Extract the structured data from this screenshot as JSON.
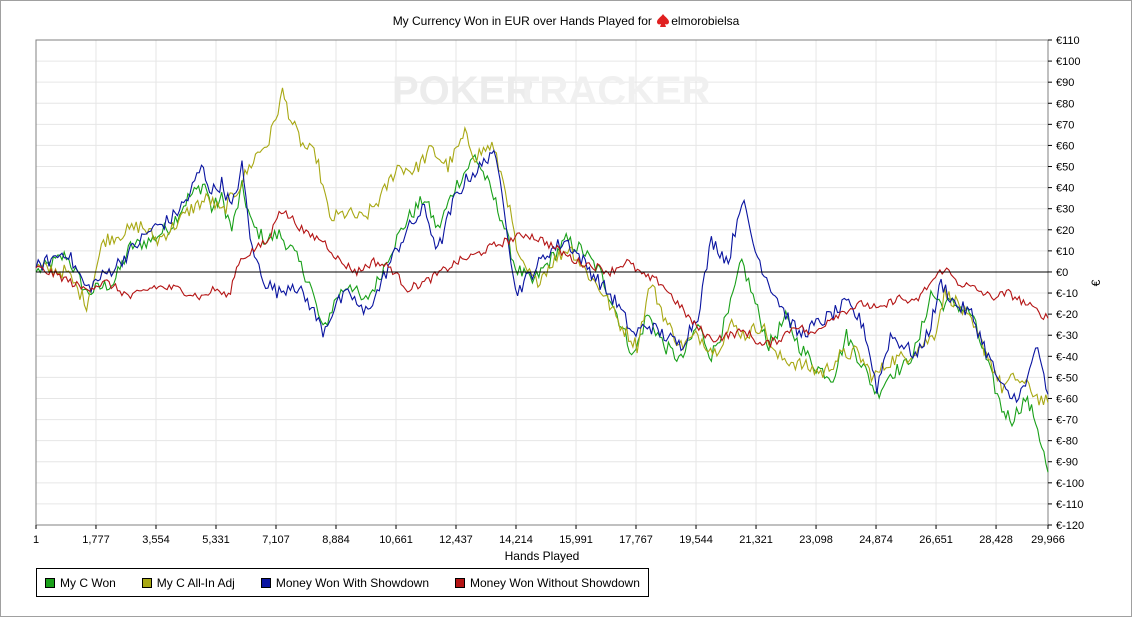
{
  "chart_data": {
    "type": "line",
    "title_prefix": "My Currency Won in EUR over Hands Played for",
    "player_name": "elmorobielsa",
    "xlabel": "Hands Played",
    "ylabel": "€",
    "watermark": {
      "part1": "POKER",
      "part2": "TRACKER"
    },
    "xlim": [
      1,
      29966
    ],
    "ylim": [
      -120,
      110
    ],
    "x_ticks": [
      1,
      1777,
      3554,
      5331,
      7107,
      8884,
      10661,
      12437,
      14214,
      15991,
      17767,
      19544,
      21321,
      23098,
      24874,
      26651,
      28428,
      29966
    ],
    "x_tick_labels": [
      "1",
      "1,777",
      "3,554",
      "5,331",
      "7,107",
      "8,884",
      "10,661",
      "12,437",
      "14,214",
      "15,991",
      "17,767",
      "19,544",
      "21,321",
      "23,098",
      "24,874",
      "26,651",
      "28,428",
      "29,966"
    ],
    "y_ticks": [
      110,
      100,
      90,
      80,
      70,
      60,
      50,
      40,
      30,
      20,
      10,
      0,
      -10,
      -20,
      -30,
      -40,
      -50,
      -60,
      -70,
      -80,
      -90,
      -100,
      -110,
      -120
    ],
    "y_tick_labels": [
      "€110",
      "€100",
      "€90",
      "€80",
      "€70",
      "€60",
      "€50",
      "€40",
      "€30",
      "€20",
      "€10",
      "€0",
      "€-10",
      "€-20",
      "€-30",
      "€-40",
      "€-50",
      "€-60",
      "€-70",
      "€-80",
      "€-90",
      "€-100",
      "€-110",
      "€-120"
    ],
    "grid": true,
    "zero_line": true,
    "legend_position": "bottom-left",
    "series": [
      {
        "name": "My C Won",
        "color": "#19a019",
        "points": [
          [
            1,
            0
          ],
          [
            900,
            8
          ],
          [
            1500,
            -10
          ],
          [
            2300,
            -5
          ],
          [
            2800,
            12
          ],
          [
            3400,
            15
          ],
          [
            4000,
            22
          ],
          [
            4500,
            35
          ],
          [
            5000,
            42
          ],
          [
            5200,
            30
          ],
          [
            5500,
            35
          ],
          [
            5800,
            20
          ],
          [
            6100,
            40
          ],
          [
            6400,
            22
          ],
          [
            6800,
            15
          ],
          [
            7200,
            18
          ],
          [
            7600,
            10
          ],
          [
            8100,
            -5
          ],
          [
            8500,
            -28
          ],
          [
            8900,
            -12
          ],
          [
            9300,
            -5
          ],
          [
            9700,
            -15
          ],
          [
            10100,
            -5
          ],
          [
            10500,
            10
          ],
          [
            11000,
            25
          ],
          [
            11500,
            35
          ],
          [
            11900,
            20
          ],
          [
            12400,
            40
          ],
          [
            13000,
            55
          ],
          [
            13300,
            45
          ],
          [
            13800,
            25
          ],
          [
            14200,
            2
          ],
          [
            14700,
            -5
          ],
          [
            15200,
            5
          ],
          [
            15700,
            15
          ],
          [
            16200,
            10
          ],
          [
            16700,
            0
          ],
          [
            17200,
            -20
          ],
          [
            17700,
            -40
          ],
          [
            18100,
            -20
          ],
          [
            18600,
            -35
          ],
          [
            19100,
            -42
          ],
          [
            19600,
            -25
          ],
          [
            20000,
            -40
          ],
          [
            20500,
            -20
          ],
          [
            20900,
            5
          ],
          [
            21300,
            -15
          ],
          [
            21700,
            -35
          ],
          [
            22200,
            -22
          ],
          [
            22600,
            -35
          ],
          [
            23100,
            -45
          ],
          [
            23600,
            -50
          ],
          [
            24000,
            -30
          ],
          [
            24500,
            -45
          ],
          [
            24900,
            -58
          ],
          [
            25300,
            -48
          ],
          [
            25700,
            -45
          ],
          [
            26100,
            -35
          ],
          [
            26500,
            -10
          ],
          [
            26800,
            -15
          ],
          [
            27200,
            -15
          ],
          [
            27700,
            -20
          ],
          [
            28200,
            -45
          ],
          [
            28600,
            -65
          ],
          [
            28900,
            -70
          ],
          [
            29300,
            -60
          ],
          [
            29600,
            -70
          ],
          [
            29966,
            -95
          ]
        ]
      },
      {
        "name": "My C All-In Adj",
        "color": "#a8a814",
        "points": [
          [
            1,
            2
          ],
          [
            900,
            0
          ],
          [
            1500,
            -15
          ],
          [
            2000,
            15
          ],
          [
            2500,
            18
          ],
          [
            3100,
            22
          ],
          [
            3600,
            15
          ],
          [
            4100,
            22
          ],
          [
            4600,
            30
          ],
          [
            5100,
            35
          ],
          [
            5500,
            28
          ],
          [
            6000,
            40
          ],
          [
            6500,
            55
          ],
          [
            6900,
            62
          ],
          [
            7300,
            85
          ],
          [
            7600,
            70
          ],
          [
            7900,
            60
          ],
          [
            8300,
            55
          ],
          [
            8700,
            25
          ],
          [
            9200,
            28
          ],
          [
            9700,
            25
          ],
          [
            10200,
            35
          ],
          [
            10700,
            50
          ],
          [
            11200,
            48
          ],
          [
            11700,
            58
          ],
          [
            12200,
            50
          ],
          [
            12700,
            65
          ],
          [
            13000,
            55
          ],
          [
            13500,
            60
          ],
          [
            13900,
            40
          ],
          [
            14300,
            5
          ],
          [
            14800,
            -5
          ],
          [
            15300,
            5
          ],
          [
            15800,
            12
          ],
          [
            16300,
            0
          ],
          [
            16800,
            -10
          ],
          [
            17300,
            -25
          ],
          [
            17800,
            -35
          ],
          [
            18200,
            -5
          ],
          [
            18700,
            -25
          ],
          [
            19100,
            -35
          ],
          [
            19600,
            -30
          ],
          [
            20100,
            -38
          ],
          [
            20600,
            -25
          ],
          [
            21000,
            -30
          ],
          [
            21500,
            -25
          ],
          [
            21900,
            -40
          ],
          [
            22300,
            -42
          ],
          [
            22800,
            -45
          ],
          [
            23300,
            -48
          ],
          [
            23800,
            -40
          ],
          [
            24300,
            -38
          ],
          [
            24800,
            -50
          ],
          [
            25300,
            -42
          ],
          [
            25800,
            -40
          ],
          [
            26200,
            -35
          ],
          [
            26600,
            -30
          ],
          [
            26900,
            -10
          ],
          [
            27300,
            -15
          ],
          [
            27700,
            -25
          ],
          [
            28200,
            -40
          ],
          [
            28600,
            -55
          ],
          [
            29000,
            -50
          ],
          [
            29400,
            -55
          ],
          [
            29700,
            -60
          ],
          [
            29966,
            -62
          ]
        ]
      },
      {
        "name": "Money Won With Showdown",
        "color": "#0a14a0",
        "points": [
          [
            1,
            2
          ],
          [
            900,
            10
          ],
          [
            1500,
            -8
          ],
          [
            2300,
            2
          ],
          [
            2800,
            10
          ],
          [
            3400,
            20
          ],
          [
            4000,
            25
          ],
          [
            4500,
            35
          ],
          [
            4900,
            50
          ],
          [
            5200,
            38
          ],
          [
            5500,
            42
          ],
          [
            5800,
            30
          ],
          [
            6100,
            50
          ],
          [
            6400,
            10
          ],
          [
            6800,
            -5
          ],
          [
            7200,
            -10
          ],
          [
            7600,
            -5
          ],
          [
            8100,
            -15
          ],
          [
            8500,
            -28
          ],
          [
            8900,
            -15
          ],
          [
            9300,
            -10
          ],
          [
            9700,
            -20
          ],
          [
            10100,
            -10
          ],
          [
            10500,
            5
          ],
          [
            11000,
            20
          ],
          [
            11500,
            30
          ],
          [
            11900,
            10
          ],
          [
            12400,
            35
          ],
          [
            12800,
            45
          ],
          [
            13200,
            50
          ],
          [
            13500,
            58
          ],
          [
            13800,
            40
          ],
          [
            14200,
            -10
          ],
          [
            14700,
            0
          ],
          [
            15200,
            10
          ],
          [
            15700,
            15
          ],
          [
            16200,
            5
          ],
          [
            16700,
            -5
          ],
          [
            17200,
            -15
          ],
          [
            17700,
            -30
          ],
          [
            18100,
            -25
          ],
          [
            18600,
            -30
          ],
          [
            19100,
            -35
          ],
          [
            19600,
            -20
          ],
          [
            20000,
            15
          ],
          [
            20500,
            5
          ],
          [
            20900,
            35
          ],
          [
            21300,
            10
          ],
          [
            21700,
            -5
          ],
          [
            22200,
            -20
          ],
          [
            22600,
            -30
          ],
          [
            23100,
            -25
          ],
          [
            23600,
            -20
          ],
          [
            24000,
            -15
          ],
          [
            24500,
            -25
          ],
          [
            24900,
            -55
          ],
          [
            25300,
            -30
          ],
          [
            25700,
            -35
          ],
          [
            26100,
            -40
          ],
          [
            26500,
            -25
          ],
          [
            26800,
            -5
          ],
          [
            27200,
            -15
          ],
          [
            27700,
            -20
          ],
          [
            28200,
            -40
          ],
          [
            28600,
            -55
          ],
          [
            28900,
            -60
          ],
          [
            29300,
            -55
          ],
          [
            29600,
            -35
          ],
          [
            29966,
            -58
          ]
        ]
      },
      {
        "name": "Money Won Without Showdown",
        "color": "#b41414",
        "points": [
          [
            1,
            2
          ],
          [
            700,
            -2
          ],
          [
            1400,
            -8
          ],
          [
            2100,
            -5
          ],
          [
            2800,
            -12
          ],
          [
            3500,
            -7
          ],
          [
            4200,
            -8
          ],
          [
            4900,
            -12
          ],
          [
            5300,
            -8
          ],
          [
            5700,
            -12
          ],
          [
            6000,
            5
          ],
          [
            6400,
            10
          ],
          [
            6900,
            15
          ],
          [
            7200,
            30
          ],
          [
            7600,
            25
          ],
          [
            8000,
            18
          ],
          [
            8500,
            15
          ],
          [
            9000,
            5
          ],
          [
            9500,
            0
          ],
          [
            10000,
            5
          ],
          [
            10500,
            2
          ],
          [
            11000,
            -8
          ],
          [
            11500,
            -5
          ],
          [
            12000,
            0
          ],
          [
            12500,
            5
          ],
          [
            13000,
            8
          ],
          [
            13500,
            12
          ],
          [
            14000,
            15
          ],
          [
            14500,
            18
          ],
          [
            15000,
            15
          ],
          [
            15500,
            10
          ],
          [
            16000,
            5
          ],
          [
            16500,
            3
          ],
          [
            17000,
            0
          ],
          [
            17500,
            5
          ],
          [
            18000,
            -2
          ],
          [
            18500,
            -5
          ],
          [
            19000,
            -15
          ],
          [
            19500,
            -25
          ],
          [
            20000,
            -32
          ],
          [
            20500,
            -30
          ],
          [
            21000,
            -28
          ],
          [
            21500,
            -35
          ],
          [
            22000,
            -32
          ],
          [
            22500,
            -25
          ],
          [
            23000,
            -30
          ],
          [
            23500,
            -22
          ],
          [
            24000,
            -18
          ],
          [
            24500,
            -15
          ],
          [
            25000,
            -18
          ],
          [
            25500,
            -12
          ],
          [
            26000,
            -15
          ],
          [
            26500,
            -5
          ],
          [
            26900,
            2
          ],
          [
            27300,
            -5
          ],
          [
            27800,
            -8
          ],
          [
            28300,
            -12
          ],
          [
            28800,
            -10
          ],
          [
            29300,
            -15
          ],
          [
            29966,
            -22
          ]
        ]
      }
    ]
  }
}
